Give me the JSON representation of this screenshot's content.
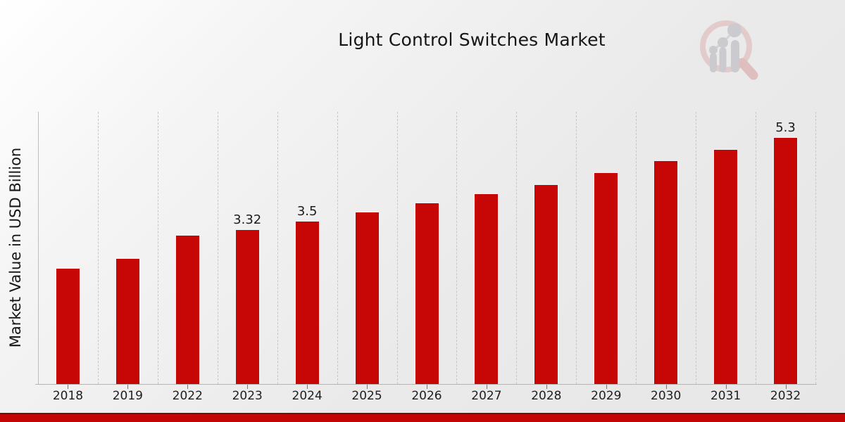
{
  "header": {
    "title": "Light Control Switches Market"
  },
  "logo": {
    "name": "magnifier-bar-chart-watermark-logo",
    "ring_color": "#e4c6c6",
    "handle_color": "#dcb7b7",
    "glyph_color": "#c6c6cb"
  },
  "chart_data": {
    "type": "bar",
    "title": "Light Control Switches Market",
    "xlabel": "",
    "ylabel": "Market Value in USD Billion",
    "categories": [
      "2018",
      "2019",
      "2022",
      "2023",
      "2024",
      "2025",
      "2026",
      "2027",
      "2028",
      "2029",
      "2030",
      "2031",
      "2032"
    ],
    "values": [
      2.5,
      2.7,
      3.2,
      3.32,
      3.5,
      3.7,
      3.9,
      4.1,
      4.3,
      4.55,
      4.8,
      5.05,
      5.3
    ],
    "data_labels": {
      "2023": "3.32",
      "2024": "3.5",
      "2032": "5.3"
    },
    "bar_color": "#c70606",
    "ylim": [
      0,
      5.85
    ],
    "grid": "vertical-dashed",
    "legend_position": "none"
  },
  "footer": {
    "accent_bar_color": "#c30505"
  }
}
